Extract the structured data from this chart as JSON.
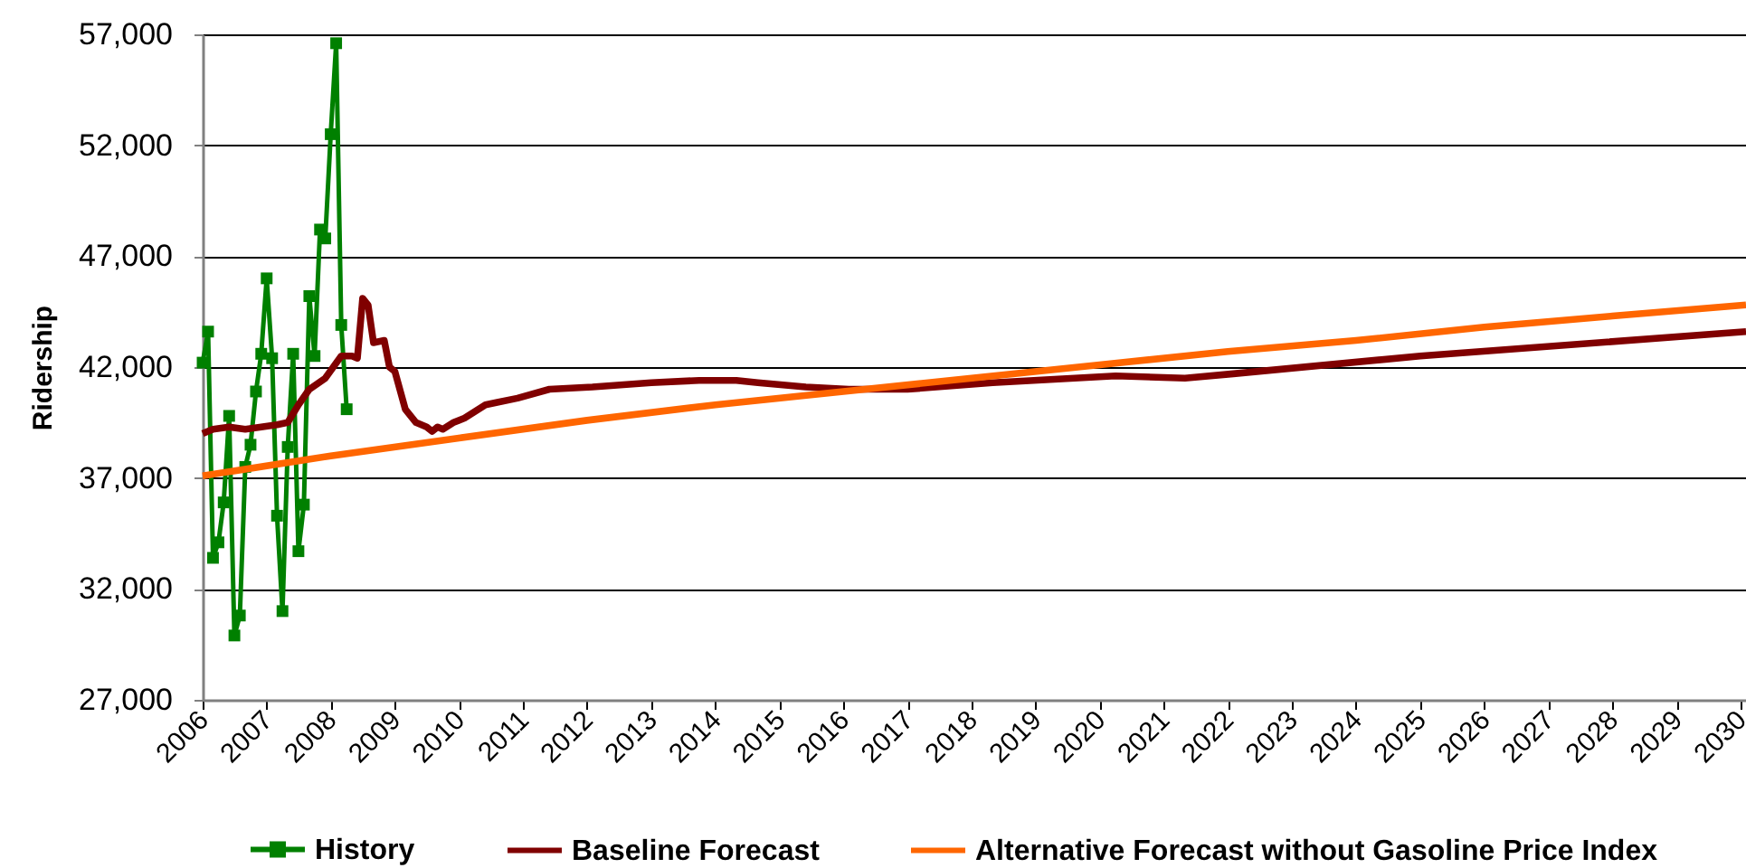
{
  "chart_data": {
    "type": "line",
    "ylabel": "Ridership",
    "ylim": [
      27000,
      57000
    ],
    "yticks": [
      {
        "value": 27000,
        "label": "27,000"
      },
      {
        "value": 32000,
        "label": "32,000"
      },
      {
        "value": 37000,
        "label": "37,000"
      },
      {
        "value": 42000,
        "label": "42,000"
      },
      {
        "value": 47000,
        "label": "47,000"
      },
      {
        "value": 52000,
        "label": "52,000"
      },
      {
        "value": 57000,
        "label": "57,000"
      }
    ],
    "xlim": [
      "2006-01",
      "2030-02"
    ],
    "xticks": [
      "2006",
      "2007",
      "2008",
      "2009",
      "2010",
      "2011",
      "2012",
      "2013",
      "2014",
      "2015",
      "2016",
      "2017",
      "2018",
      "2019",
      "2020",
      "2021",
      "2022",
      "2023",
      "2024",
      "2025",
      "2026",
      "2027",
      "2028",
      "2029",
      "2030"
    ],
    "grid": "y",
    "legend": "bottom",
    "series": [
      {
        "name": "History",
        "color": "#008000",
        "marker": "square",
        "x": [
          "2006-01",
          "2006-02",
          "2006-03",
          "2006-04",
          "2006-05",
          "2006-06",
          "2006-07",
          "2006-08",
          "2006-09",
          "2006-10",
          "2006-11",
          "2006-12",
          "2007-01",
          "2007-02",
          "2007-03",
          "2007-04",
          "2007-05",
          "2007-06",
          "2007-07",
          "2007-08",
          "2007-09",
          "2007-10",
          "2007-11",
          "2007-12",
          "2008-01",
          "2008-02",
          "2008-03",
          "2008-04"
        ],
        "values": [
          42200,
          43600,
          33400,
          34100,
          35900,
          39800,
          29900,
          30800,
          37500,
          38500,
          40900,
          42600,
          46000,
          42400,
          35300,
          31000,
          38400,
          42600,
          33700,
          35800,
          45200,
          42500,
          48200,
          47800,
          52500,
          56600,
          43900,
          40100
        ]
      },
      {
        "name": "Baseline Forecast",
        "color": "#800000",
        "marker": "none",
        "x": [
          "2006-01",
          "2006-03",
          "2006-06",
          "2006-09",
          "2006-12",
          "2007-03",
          "2007-05",
          "2007-07",
          "2007-09",
          "2007-12",
          "2008-03",
          "2008-05",
          "2008-06",
          "2008-07",
          "2008-08",
          "2008-09",
          "2008-11",
          "2008-12",
          "2009-01",
          "2009-03",
          "2009-05",
          "2009-07",
          "2009-08",
          "2009-09",
          "2009-10",
          "2009-12",
          "2010-02",
          "2010-06",
          "2010-08",
          "2010-12",
          "2011-06",
          "2012-02",
          "2013-01",
          "2013-10",
          "2014-05",
          "2014-09",
          "2015-06",
          "2016-02",
          "2017-01",
          "2018-05",
          "2020-04",
          "2021-05",
          "2022-02",
          "2025-01",
          "2030-02"
        ],
        "values": [
          39000,
          39200,
          39300,
          39200,
          39300,
          39400,
          39500,
          40300,
          41000,
          41500,
          42500,
          42500,
          42400,
          45100,
          44800,
          43100,
          43200,
          42000,
          41800,
          40100,
          39500,
          39300,
          39100,
          39300,
          39200,
          39500,
          39700,
          40300,
          40400,
          40600,
          41000,
          41100,
          41300,
          41400,
          41400,
          41300,
          41100,
          41000,
          41000,
          41300,
          41600,
          41500,
          41700,
          42500,
          43600
        ]
      },
      {
        "name": "Alternative Forecast without Gasoline Price Index",
        "color": "#ff6600",
        "marker": "none",
        "x": [
          "2006-01",
          "2008-01",
          "2010-01",
          "2012-01",
          "2014-01",
          "2016-01",
          "2018-01",
          "2020-01",
          "2022-01",
          "2024-01",
          "2026-01",
          "2028-01",
          "2030-02"
        ],
        "values": [
          37100,
          38000,
          38800,
          39600,
          40300,
          40900,
          41500,
          42100,
          42700,
          43200,
          43800,
          44300,
          44800
        ]
      }
    ]
  }
}
